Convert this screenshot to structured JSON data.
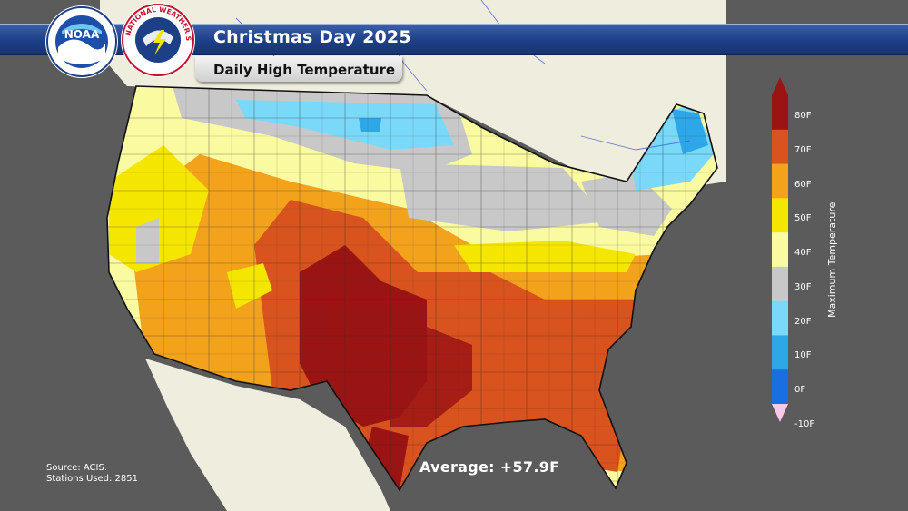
{
  "header": {
    "title": "Christmas Day 2025",
    "subtitle": "Daily High Temperature"
  },
  "logos": {
    "noaa_text": "NOAA",
    "nws_text": "NATIONAL WEATHER SERVICE"
  },
  "legend": {
    "title": "Maximum Temperature",
    "ticks": [
      "80F",
      "70F",
      "60F",
      "50F",
      "40F",
      "30F",
      "20F",
      "10F",
      "0F",
      "-10F"
    ],
    "colors": [
      "#9b1414",
      "#d9531e",
      "#f3a21c",
      "#f5e600",
      "#fafaa0",
      "#c8c8c8",
      "#7ad8f8",
      "#2ea7e8",
      "#1a6fe0",
      "#0e2f80",
      "#f8c8e8"
    ]
  },
  "footer": {
    "source": "Source: ACIS.",
    "stations": "Stations Used: 2851",
    "average": "Average: +57.9F"
  },
  "colors": {
    "ocean": "#5b5b5b",
    "land": "#efeddd",
    "banner": "#1d3f88"
  }
}
